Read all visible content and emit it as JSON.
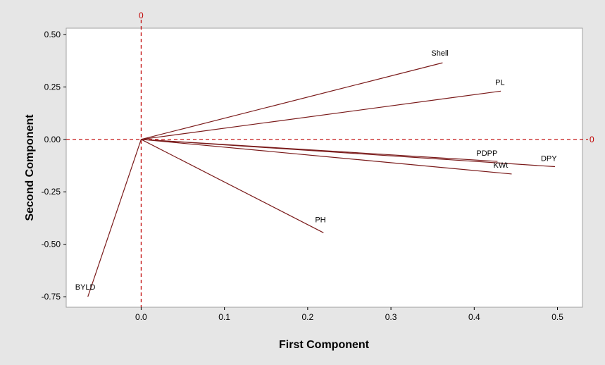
{
  "chart_data": {
    "type": "loading-plot",
    "xlabel": "First Component",
    "ylabel": "Second Component",
    "xlim": [
      -0.09,
      0.53
    ],
    "ylim": [
      -0.8,
      0.53
    ],
    "xticks": [
      0.0,
      0.1,
      0.2,
      0.3,
      0.4,
      0.5
    ],
    "xtick_labels": [
      "0.0",
      "0.1",
      "0.2",
      "0.3",
      "0.4",
      "0.5"
    ],
    "yticks": [
      0.5,
      0.25,
      0.0,
      -0.25,
      -0.5,
      -0.75
    ],
    "ytick_labels": [
      "0.50",
      "0.25",
      "0.00",
      "-0.25",
      "-0.50",
      "-0.75"
    ],
    "reference_lines": {
      "x": 0,
      "y": 0,
      "x_label": "0",
      "y_label": "0"
    },
    "vectors": [
      {
        "label": "Shell",
        "x": 0.362,
        "y": 0.365
      },
      {
        "label": "PL",
        "x": 0.432,
        "y": 0.23
      },
      {
        "label": "PDPP",
        "x": 0.428,
        "y": -0.105
      },
      {
        "label": "DPY",
        "x": 0.497,
        "y": -0.13
      },
      {
        "label": "KWt",
        "x": 0.445,
        "y": -0.165
      },
      {
        "label": "PH",
        "x": 0.219,
        "y": -0.445
      },
      {
        "label": "BYLD",
        "x": -0.064,
        "y": -0.75
      }
    ]
  },
  "colors": {
    "vector": "#7a1a1a",
    "reference": "#c00000",
    "plot_bg": "#ffffff",
    "figure_bg": "#e6e6e6",
    "frame": "#a0a0a0"
  }
}
